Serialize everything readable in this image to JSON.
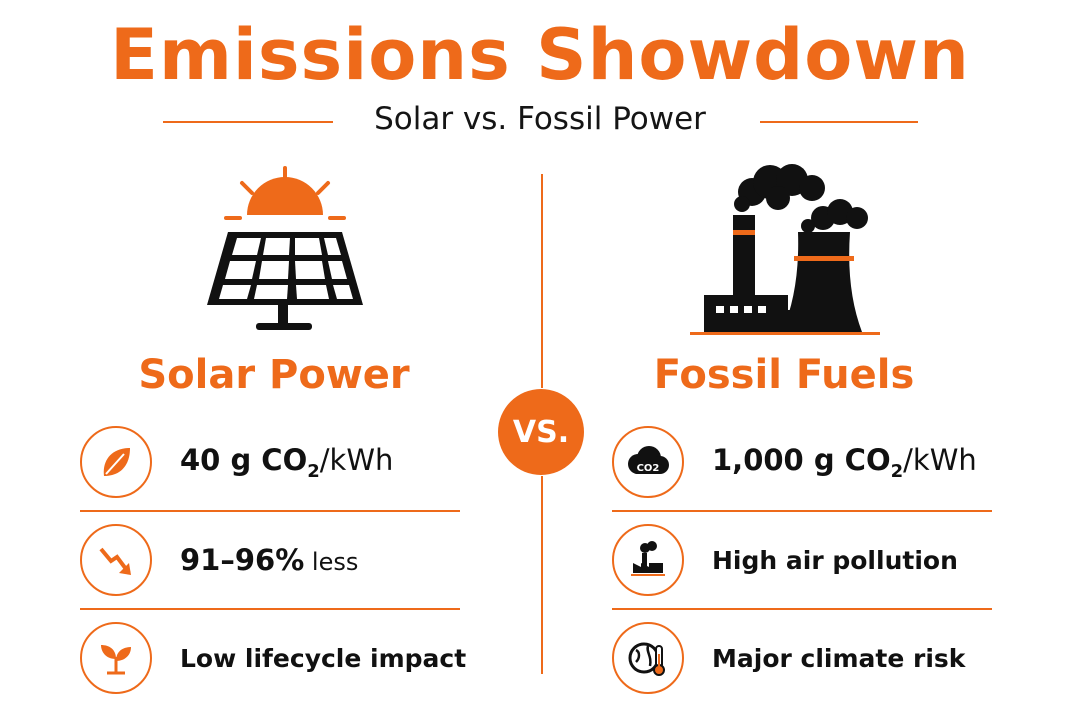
{
  "header": {
    "title": "Emissions Showdown",
    "subtitle": "Solar vs. Fossil Power"
  },
  "vs_label": "VS.",
  "colors": {
    "accent": "#ee6a1a",
    "text": "#111111",
    "background": "#ffffff"
  },
  "solar": {
    "title": "Solar Power",
    "illustration": "solar-panel-with-sun",
    "rows": [
      {
        "icon": "leaf-icon",
        "text_main": "40 g CO",
        "text_sub": "2",
        "text_tail": "/kWh"
      },
      {
        "icon": "trend-down-arrow-icon",
        "text_main": "91–96%",
        "text_tail": " less"
      },
      {
        "icon": "sprout-icon",
        "text_main": "Low lifecycle impact"
      }
    ]
  },
  "fossil": {
    "title": "Fossil Fuels",
    "illustration": "factory-with-smokestacks",
    "rows": [
      {
        "icon": "co2-cloud-icon",
        "icon_label": "CO2",
        "text_main": "1,000 g CO",
        "text_sub": "2",
        "text_tail": "/kWh"
      },
      {
        "icon": "factory-icon",
        "text_main": "High air pollution"
      },
      {
        "icon": "globe-thermometer-icon",
        "text_main": "Major climate risk"
      }
    ]
  }
}
